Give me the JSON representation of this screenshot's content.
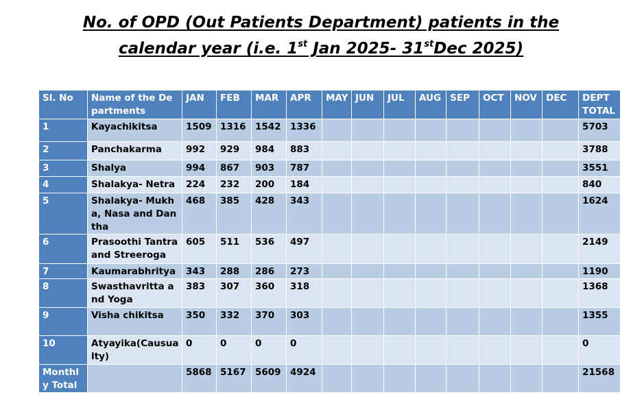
{
  "title": {
    "line1": "No. of OPD (Out Patients Department) patients in the",
    "line2_pre": "calendar year (i.e. 1",
    "sup1": "st",
    "line2_mid": " Jan 2025- 31",
    "sup2": "st",
    "line2_post": "Dec 2025)"
  },
  "table": {
    "headers": [
      "Sl. No",
      "Name of the Departments",
      "JAN",
      "FEB",
      "MAR",
      "APR",
      "MAY",
      "JUN",
      "JUL",
      "AUG",
      "SEP",
      "OCT",
      "NOV",
      "DEC",
      "DEPT TOTAL"
    ],
    "rows": [
      [
        "1",
        "Kayachikitsa",
        "1509",
        "1316",
        "1542",
        "1336",
        "",
        "",
        "",
        "",
        "",
        "",
        "",
        "",
        "5703"
      ],
      [
        "2",
        "Panchakarma",
        "992",
        "929",
        "984",
        "883",
        "",
        "",
        "",
        "",
        "",
        "",
        "",
        "",
        "3788"
      ],
      [
        "3",
        "Shalya",
        "994",
        "867",
        "903",
        "787",
        "",
        "",
        "",
        "",
        "",
        "",
        "",
        "",
        "3551"
      ],
      [
        "4",
        "Shalakya- Netra",
        "224",
        "232",
        "200",
        "184",
        "",
        "",
        "",
        "",
        "",
        "",
        "",
        "",
        "840"
      ],
      [
        "5",
        "Shalakya- Mukha, Nasa and Dantha",
        "468",
        "385",
        "428",
        "343",
        "",
        "",
        "",
        "",
        "",
        "",
        "",
        "",
        "1624"
      ],
      [
        "6",
        "Prasoothi Tantra and Streeroga",
        "605",
        "511",
        "536",
        "497",
        "",
        "",
        "",
        "",
        "",
        "",
        "",
        "",
        "2149"
      ],
      [
        "7",
        "Kaumarabhritya",
        "343",
        "288",
        "286",
        "273",
        "",
        "",
        "",
        "",
        "",
        "",
        "",
        "",
        "1190"
      ],
      [
        "8",
        "Swasthavritta and Yoga",
        "383",
        "307",
        "360",
        "318",
        "",
        "",
        "",
        "",
        "",
        "",
        "",
        "",
        "1368"
      ],
      [
        "9",
        "Visha chikitsa",
        "350",
        "332",
        "370",
        "303",
        "",
        "",
        "",
        "",
        "",
        "",
        "",
        "",
        "1355"
      ],
      [
        "10",
        "Atyayika(Causualty)",
        "0",
        "0",
        "0",
        "0",
        "",
        "",
        "",
        "",
        "",
        "",
        "",
        "",
        "0"
      ]
    ],
    "total_row": [
      "Monthly Total",
      "",
      "5868",
      "5167",
      "5609",
      "4924",
      "",
      "",
      "",
      "",
      "",
      "",
      "",
      "",
      "21568"
    ]
  }
}
